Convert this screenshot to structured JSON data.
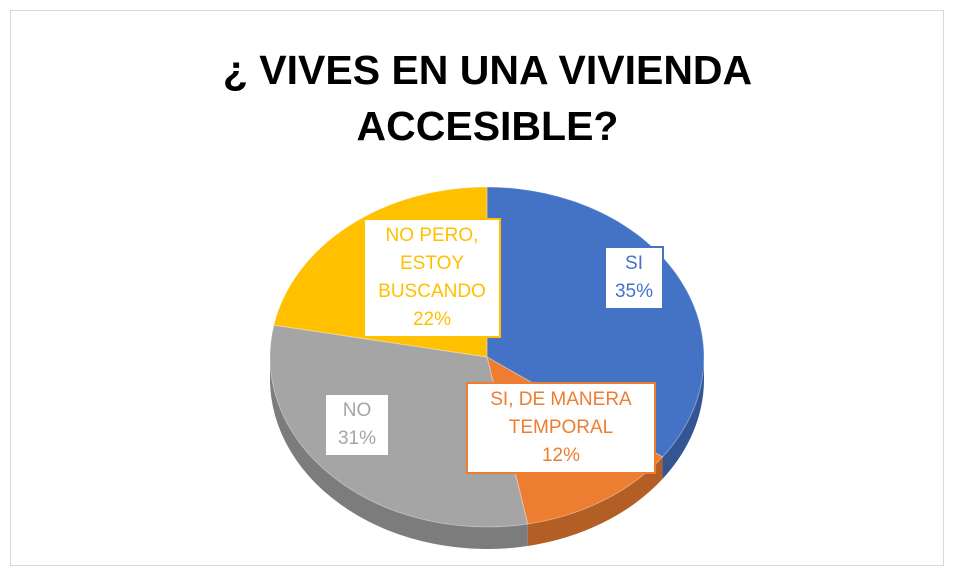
{
  "chart_data": {
    "type": "pie",
    "title": "¿ VIVES EN UNA VIVIENDA ACCESIBLE?",
    "categories": [
      "SI",
      "SI, DE MANERA TEMPORAL",
      "NO",
      "NO PERO, ESTOY BUSCANDO"
    ],
    "values": [
      35,
      12,
      31,
      22
    ],
    "value_labels": [
      "35%",
      "12%",
      "31%",
      "22%"
    ],
    "colors": [
      "#4472c4",
      "#ed7d31",
      "#a5a5a5",
      "#ffc000"
    ]
  }
}
